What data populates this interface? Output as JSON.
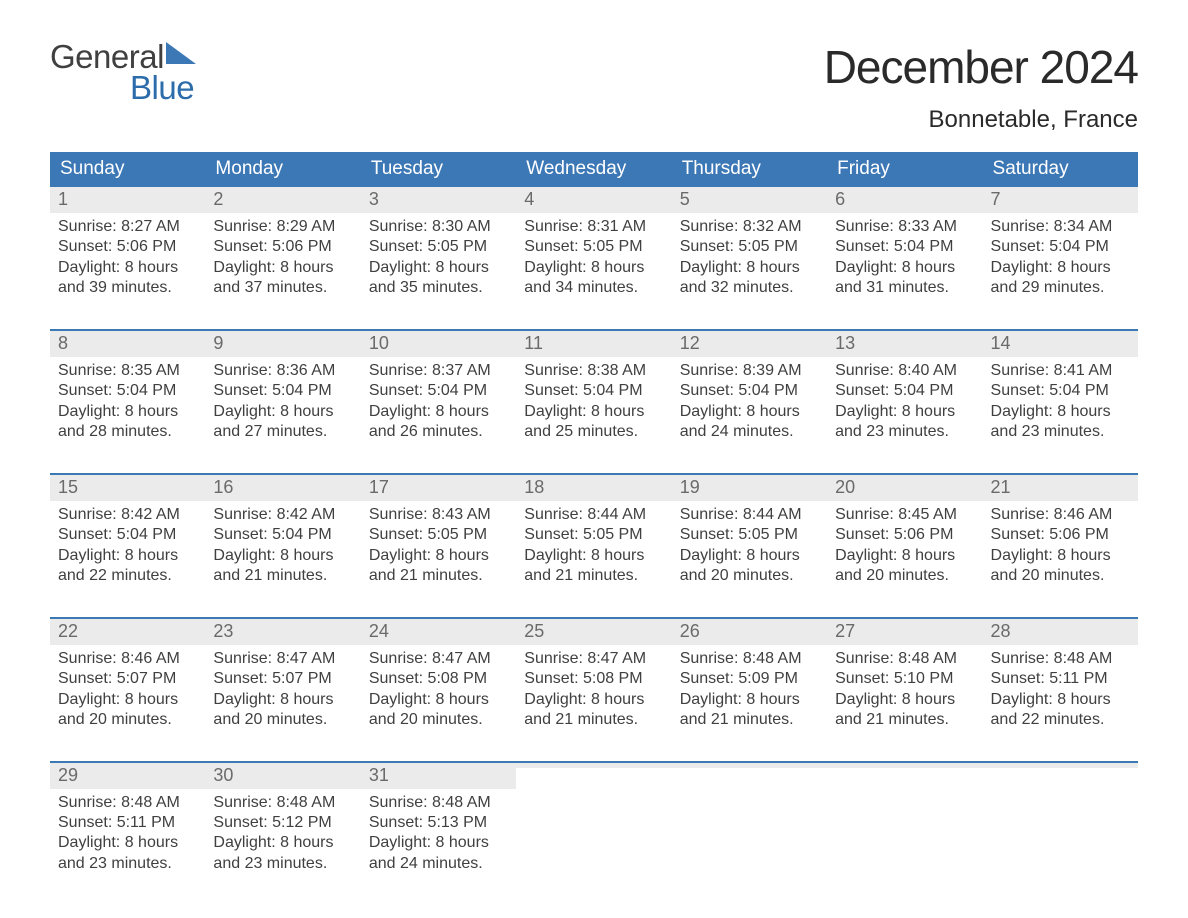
{
  "logo": {
    "top": "General",
    "bottom": "Blue",
    "triangle_color": "#3d78b6"
  },
  "title": {
    "month": "December 2024",
    "location": "Bonnetable, France"
  },
  "colors": {
    "header_bg": "#3d78b6",
    "header_text": "#ffffff",
    "week_border": "#3d78b6",
    "daynum_bg": "#ebebeb",
    "daynum_text": "#6a6a6a",
    "body_text": "#404040",
    "background": "#ffffff"
  },
  "typography": {
    "title_fontsize": 46,
    "location_fontsize": 24,
    "header_fontsize": 19,
    "daynum_fontsize": 18,
    "body_fontsize": 16,
    "font_family": "Arial"
  },
  "columns": [
    "Sunday",
    "Monday",
    "Tuesday",
    "Wednesday",
    "Thursday",
    "Friday",
    "Saturday"
  ],
  "weeks": [
    [
      {
        "n": "1",
        "sunrise": "Sunrise: 8:27 AM",
        "sunset": "Sunset: 5:06 PM",
        "dl1": "Daylight: 8 hours",
        "dl2": "and 39 minutes."
      },
      {
        "n": "2",
        "sunrise": "Sunrise: 8:29 AM",
        "sunset": "Sunset: 5:06 PM",
        "dl1": "Daylight: 8 hours",
        "dl2": "and 37 minutes."
      },
      {
        "n": "3",
        "sunrise": "Sunrise: 8:30 AM",
        "sunset": "Sunset: 5:05 PM",
        "dl1": "Daylight: 8 hours",
        "dl2": "and 35 minutes."
      },
      {
        "n": "4",
        "sunrise": "Sunrise: 8:31 AM",
        "sunset": "Sunset: 5:05 PM",
        "dl1": "Daylight: 8 hours",
        "dl2": "and 34 minutes."
      },
      {
        "n": "5",
        "sunrise": "Sunrise: 8:32 AM",
        "sunset": "Sunset: 5:05 PM",
        "dl1": "Daylight: 8 hours",
        "dl2": "and 32 minutes."
      },
      {
        "n": "6",
        "sunrise": "Sunrise: 8:33 AM",
        "sunset": "Sunset: 5:04 PM",
        "dl1": "Daylight: 8 hours",
        "dl2": "and 31 minutes."
      },
      {
        "n": "7",
        "sunrise": "Sunrise: 8:34 AM",
        "sunset": "Sunset: 5:04 PM",
        "dl1": "Daylight: 8 hours",
        "dl2": "and 29 minutes."
      }
    ],
    [
      {
        "n": "8",
        "sunrise": "Sunrise: 8:35 AM",
        "sunset": "Sunset: 5:04 PM",
        "dl1": "Daylight: 8 hours",
        "dl2": "and 28 minutes."
      },
      {
        "n": "9",
        "sunrise": "Sunrise: 8:36 AM",
        "sunset": "Sunset: 5:04 PM",
        "dl1": "Daylight: 8 hours",
        "dl2": "and 27 minutes."
      },
      {
        "n": "10",
        "sunrise": "Sunrise: 8:37 AM",
        "sunset": "Sunset: 5:04 PM",
        "dl1": "Daylight: 8 hours",
        "dl2": "and 26 minutes."
      },
      {
        "n": "11",
        "sunrise": "Sunrise: 8:38 AM",
        "sunset": "Sunset: 5:04 PM",
        "dl1": "Daylight: 8 hours",
        "dl2": "and 25 minutes."
      },
      {
        "n": "12",
        "sunrise": "Sunrise: 8:39 AM",
        "sunset": "Sunset: 5:04 PM",
        "dl1": "Daylight: 8 hours",
        "dl2": "and 24 minutes."
      },
      {
        "n": "13",
        "sunrise": "Sunrise: 8:40 AM",
        "sunset": "Sunset: 5:04 PM",
        "dl1": "Daylight: 8 hours",
        "dl2": "and 23 minutes."
      },
      {
        "n": "14",
        "sunrise": "Sunrise: 8:41 AM",
        "sunset": "Sunset: 5:04 PM",
        "dl1": "Daylight: 8 hours",
        "dl2": "and 23 minutes."
      }
    ],
    [
      {
        "n": "15",
        "sunrise": "Sunrise: 8:42 AM",
        "sunset": "Sunset: 5:04 PM",
        "dl1": "Daylight: 8 hours",
        "dl2": "and 22 minutes."
      },
      {
        "n": "16",
        "sunrise": "Sunrise: 8:42 AM",
        "sunset": "Sunset: 5:04 PM",
        "dl1": "Daylight: 8 hours",
        "dl2": "and 21 minutes."
      },
      {
        "n": "17",
        "sunrise": "Sunrise: 8:43 AM",
        "sunset": "Sunset: 5:05 PM",
        "dl1": "Daylight: 8 hours",
        "dl2": "and 21 minutes."
      },
      {
        "n": "18",
        "sunrise": "Sunrise: 8:44 AM",
        "sunset": "Sunset: 5:05 PM",
        "dl1": "Daylight: 8 hours",
        "dl2": "and 21 minutes."
      },
      {
        "n": "19",
        "sunrise": "Sunrise: 8:44 AM",
        "sunset": "Sunset: 5:05 PM",
        "dl1": "Daylight: 8 hours",
        "dl2": "and 20 minutes."
      },
      {
        "n": "20",
        "sunrise": "Sunrise: 8:45 AM",
        "sunset": "Sunset: 5:06 PM",
        "dl1": "Daylight: 8 hours",
        "dl2": "and 20 minutes."
      },
      {
        "n": "21",
        "sunrise": "Sunrise: 8:46 AM",
        "sunset": "Sunset: 5:06 PM",
        "dl1": "Daylight: 8 hours",
        "dl2": "and 20 minutes."
      }
    ],
    [
      {
        "n": "22",
        "sunrise": "Sunrise: 8:46 AM",
        "sunset": "Sunset: 5:07 PM",
        "dl1": "Daylight: 8 hours",
        "dl2": "and 20 minutes."
      },
      {
        "n": "23",
        "sunrise": "Sunrise: 8:47 AM",
        "sunset": "Sunset: 5:07 PM",
        "dl1": "Daylight: 8 hours",
        "dl2": "and 20 minutes."
      },
      {
        "n": "24",
        "sunrise": "Sunrise: 8:47 AM",
        "sunset": "Sunset: 5:08 PM",
        "dl1": "Daylight: 8 hours",
        "dl2": "and 20 minutes."
      },
      {
        "n": "25",
        "sunrise": "Sunrise: 8:47 AM",
        "sunset": "Sunset: 5:08 PM",
        "dl1": "Daylight: 8 hours",
        "dl2": "and 21 minutes."
      },
      {
        "n": "26",
        "sunrise": "Sunrise: 8:48 AM",
        "sunset": "Sunset: 5:09 PM",
        "dl1": "Daylight: 8 hours",
        "dl2": "and 21 minutes."
      },
      {
        "n": "27",
        "sunrise": "Sunrise: 8:48 AM",
        "sunset": "Sunset: 5:10 PM",
        "dl1": "Daylight: 8 hours",
        "dl2": "and 21 minutes."
      },
      {
        "n": "28",
        "sunrise": "Sunrise: 8:48 AM",
        "sunset": "Sunset: 5:11 PM",
        "dl1": "Daylight: 8 hours",
        "dl2": "and 22 minutes."
      }
    ],
    [
      {
        "n": "29",
        "sunrise": "Sunrise: 8:48 AM",
        "sunset": "Sunset: 5:11 PM",
        "dl1": "Daylight: 8 hours",
        "dl2": "and 23 minutes."
      },
      {
        "n": "30",
        "sunrise": "Sunrise: 8:48 AM",
        "sunset": "Sunset: 5:12 PM",
        "dl1": "Daylight: 8 hours",
        "dl2": "and 23 minutes."
      },
      {
        "n": "31",
        "sunrise": "Sunrise: 8:48 AM",
        "sunset": "Sunset: 5:13 PM",
        "dl1": "Daylight: 8 hours",
        "dl2": "and 24 minutes."
      },
      {
        "empty": true
      },
      {
        "empty": true
      },
      {
        "empty": true
      },
      {
        "empty": true
      }
    ]
  ]
}
